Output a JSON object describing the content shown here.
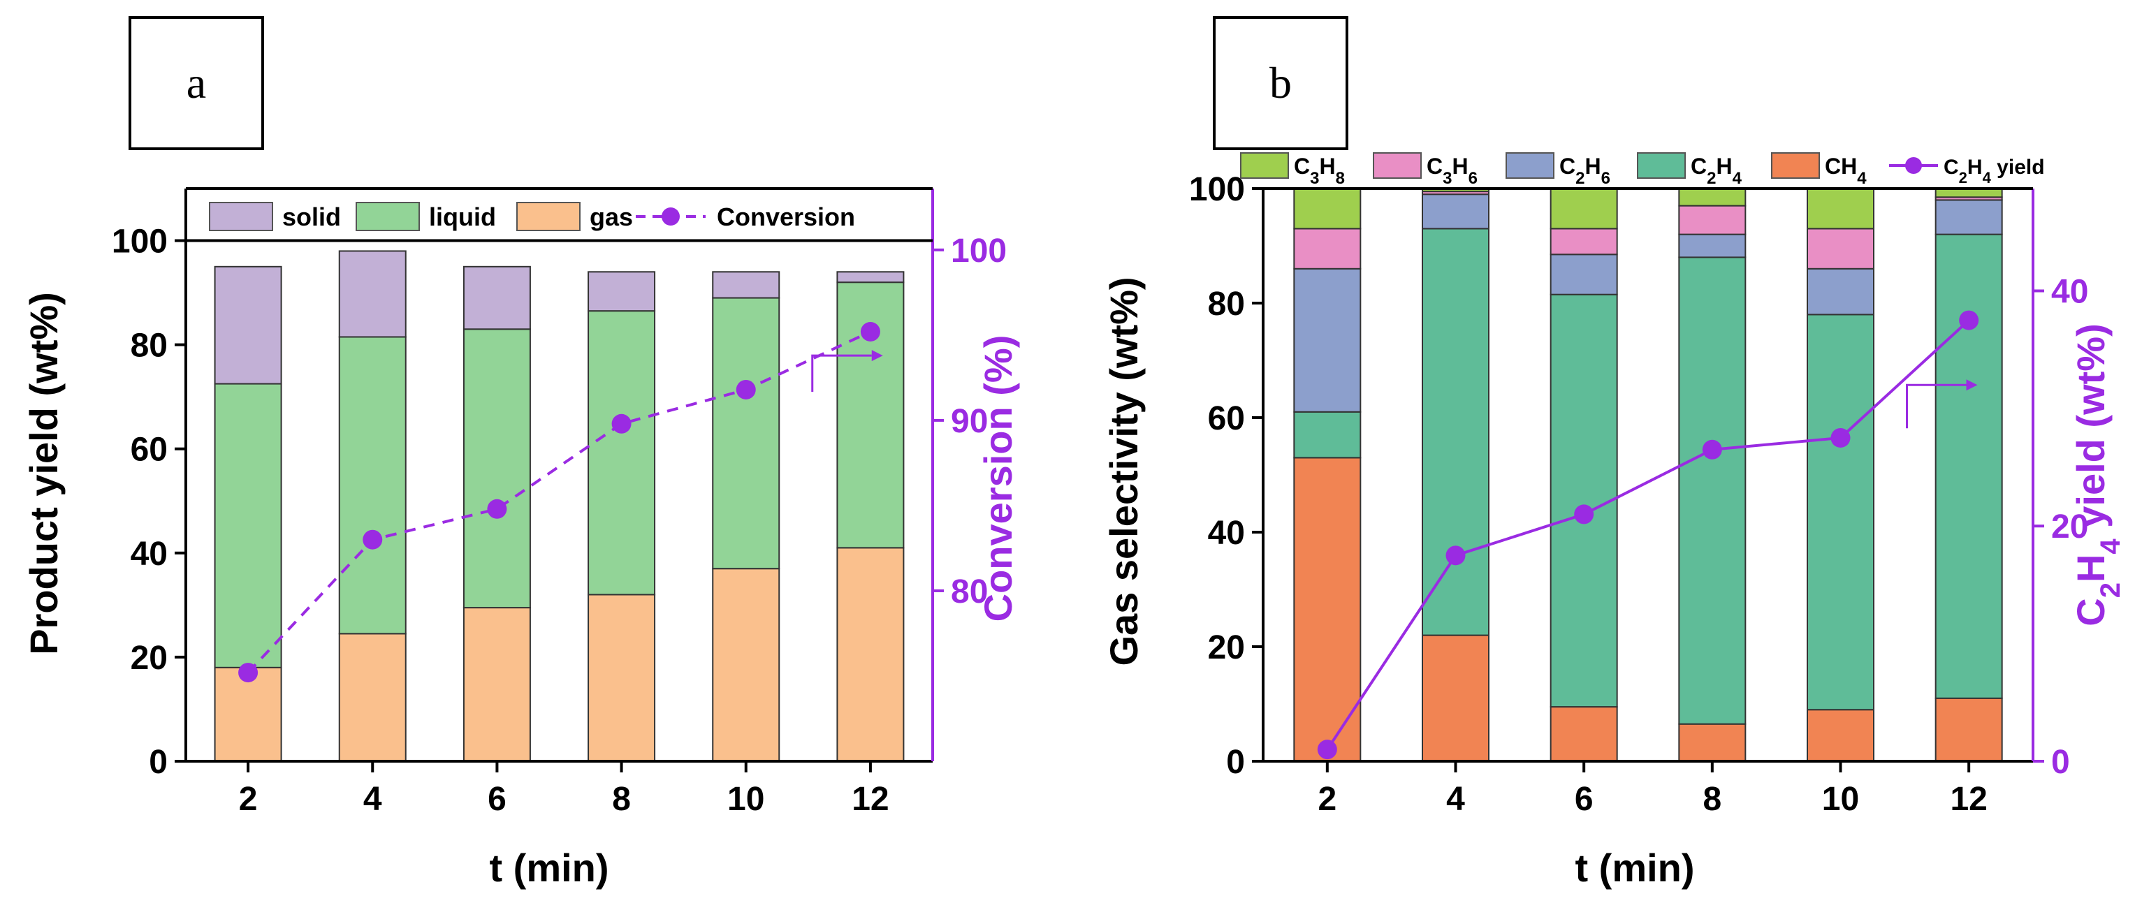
{
  "figure": {
    "panel_labels": [
      "a",
      "b"
    ]
  },
  "colors": {
    "solid": "#c2b0d6",
    "liquid": "#92d497",
    "gas": "#fac08d",
    "conversion": "#9a2be2",
    "c3h8": "#9fcf4e",
    "c3h6": "#e98fc5",
    "c2h6": "#8c9fcc",
    "c2h4": "#5fbc98",
    "ch4": "#f18453",
    "c2h4_yield": "#9a2be2"
  },
  "chart_data": [
    {
      "id": "a",
      "type": "bar",
      "stacked": true,
      "categories": [
        "2",
        "4",
        "6",
        "8",
        "10",
        "12"
      ],
      "series": [
        {
          "name": "gas",
          "key": "gas",
          "values": [
            18,
            24.5,
            29.5,
            32,
            37,
            41
          ]
        },
        {
          "name": "liquid",
          "key": "liquid",
          "values": [
            54.5,
            57,
            53.5,
            54.5,
            52,
            51
          ]
        },
        {
          "name": "solid",
          "key": "solid",
          "values": [
            22.5,
            16.5,
            12,
            7.5,
            5,
            2
          ]
        }
      ],
      "line_series": {
        "name": "Conversion",
        "key": "conversion",
        "values": [
          75.2,
          83,
          84.8,
          89.8,
          91.8,
          95.2
        ],
        "axis": "right",
        "style": "dashed"
      },
      "xlabel": "t (min)",
      "ylabel": "Product yield (wt%)",
      "ylabel_right": "Conversion (%)",
      "ylim": [
        0,
        110
      ],
      "yticks": [
        0,
        20,
        40,
        60,
        80,
        100
      ],
      "ylim_right": [
        70,
        103.6
      ],
      "yticks_right": [
        80,
        90,
        100
      ],
      "legend": [
        "solid",
        "liquid",
        "gas",
        "Conversion"
      ],
      "legend_position": "top inside frame",
      "annotation": "arrow pointing right"
    },
    {
      "id": "b",
      "type": "bar",
      "stacked": true,
      "categories": [
        "2",
        "4",
        "6",
        "8",
        "10",
        "12"
      ],
      "series": [
        {
          "name": "CH4",
          "key": "ch4",
          "values": [
            53,
            22,
            9.5,
            6.5,
            9,
            11
          ]
        },
        {
          "name": "C2H4",
          "key": "c2h4",
          "values": [
            8,
            71,
            72,
            81.5,
            69,
            81
          ]
        },
        {
          "name": "C2H6",
          "key": "c2h6",
          "values": [
            25,
            6,
            7,
            4,
            8,
            6
          ]
        },
        {
          "name": "C3H6",
          "key": "c3h6",
          "values": [
            7,
            0.5,
            4.5,
            5,
            7,
            0.5
          ]
        },
        {
          "name": "C3H8",
          "key": "c3h8",
          "values": [
            7,
            0.5,
            7,
            3,
            7,
            1.5
          ]
        }
      ],
      "line_series": {
        "name": "C2H4 yield",
        "key": "c2h4_yield",
        "values": [
          1,
          17.5,
          21,
          26.5,
          27.5,
          37.5
        ],
        "axis": "right",
        "style": "solid"
      },
      "xlabel": "t (min)",
      "ylabel": "Gas selectivity (wt%)",
      "ylabel_right": "C2H4 yield (wt%)",
      "ylim": [
        0,
        100
      ],
      "yticks": [
        0,
        20,
        40,
        60,
        80,
        100
      ],
      "ylim_right": [
        0,
        48.7
      ],
      "yticks_right": [
        0,
        20,
        40
      ],
      "legend": [
        "C3H8",
        "C3H6",
        "C2H6",
        "C2H4",
        "CH4",
        "C2H4 yield"
      ],
      "legend_position": "above plot",
      "annotation": "arrow pointing right"
    }
  ]
}
